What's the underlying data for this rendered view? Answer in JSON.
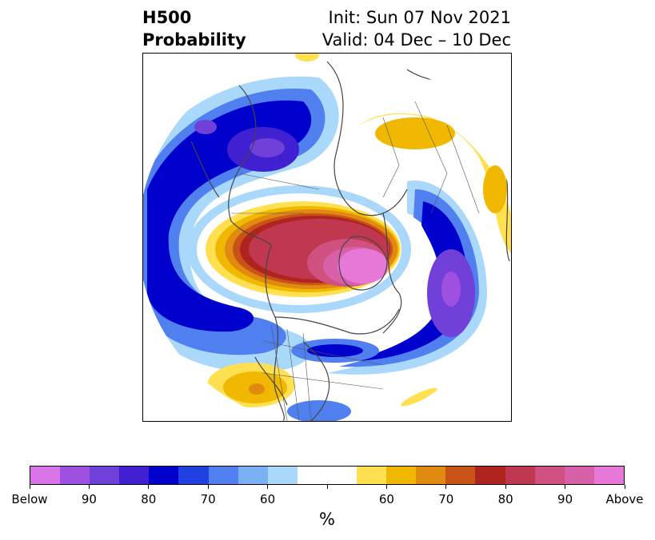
{
  "title": {
    "left_line1": "H500",
    "left_line2": "Probability",
    "right_line1": "Init: Sun 07 Nov 2021",
    "right_line2": "Valid: 04 Dec – 10 Dec"
  },
  "colorbar": {
    "unit": "%",
    "tick_labels": [
      "Below",
      "90",
      "80",
      "70",
      "60",
      "",
      "60",
      "70",
      "80",
      "90",
      "Above"
    ],
    "colors": [
      "#d975e8",
      "#a050e0",
      "#7040d8",
      "#4020d0",
      "#0000cc",
      "#2040e0",
      "#5080f0",
      "#7ab0f4",
      "#aad8fa",
      "#ffffff",
      "#ffffff",
      "#ffe050",
      "#f0b800",
      "#e08a10",
      "#c85218",
      "#b02420",
      "#c03850",
      "#d05080",
      "#d860a8",
      "#e878d8"
    ]
  },
  "map": {
    "projection": "polar-stereographic-north",
    "content": "H500 probability anomaly shading over North America and Arctic"
  }
}
